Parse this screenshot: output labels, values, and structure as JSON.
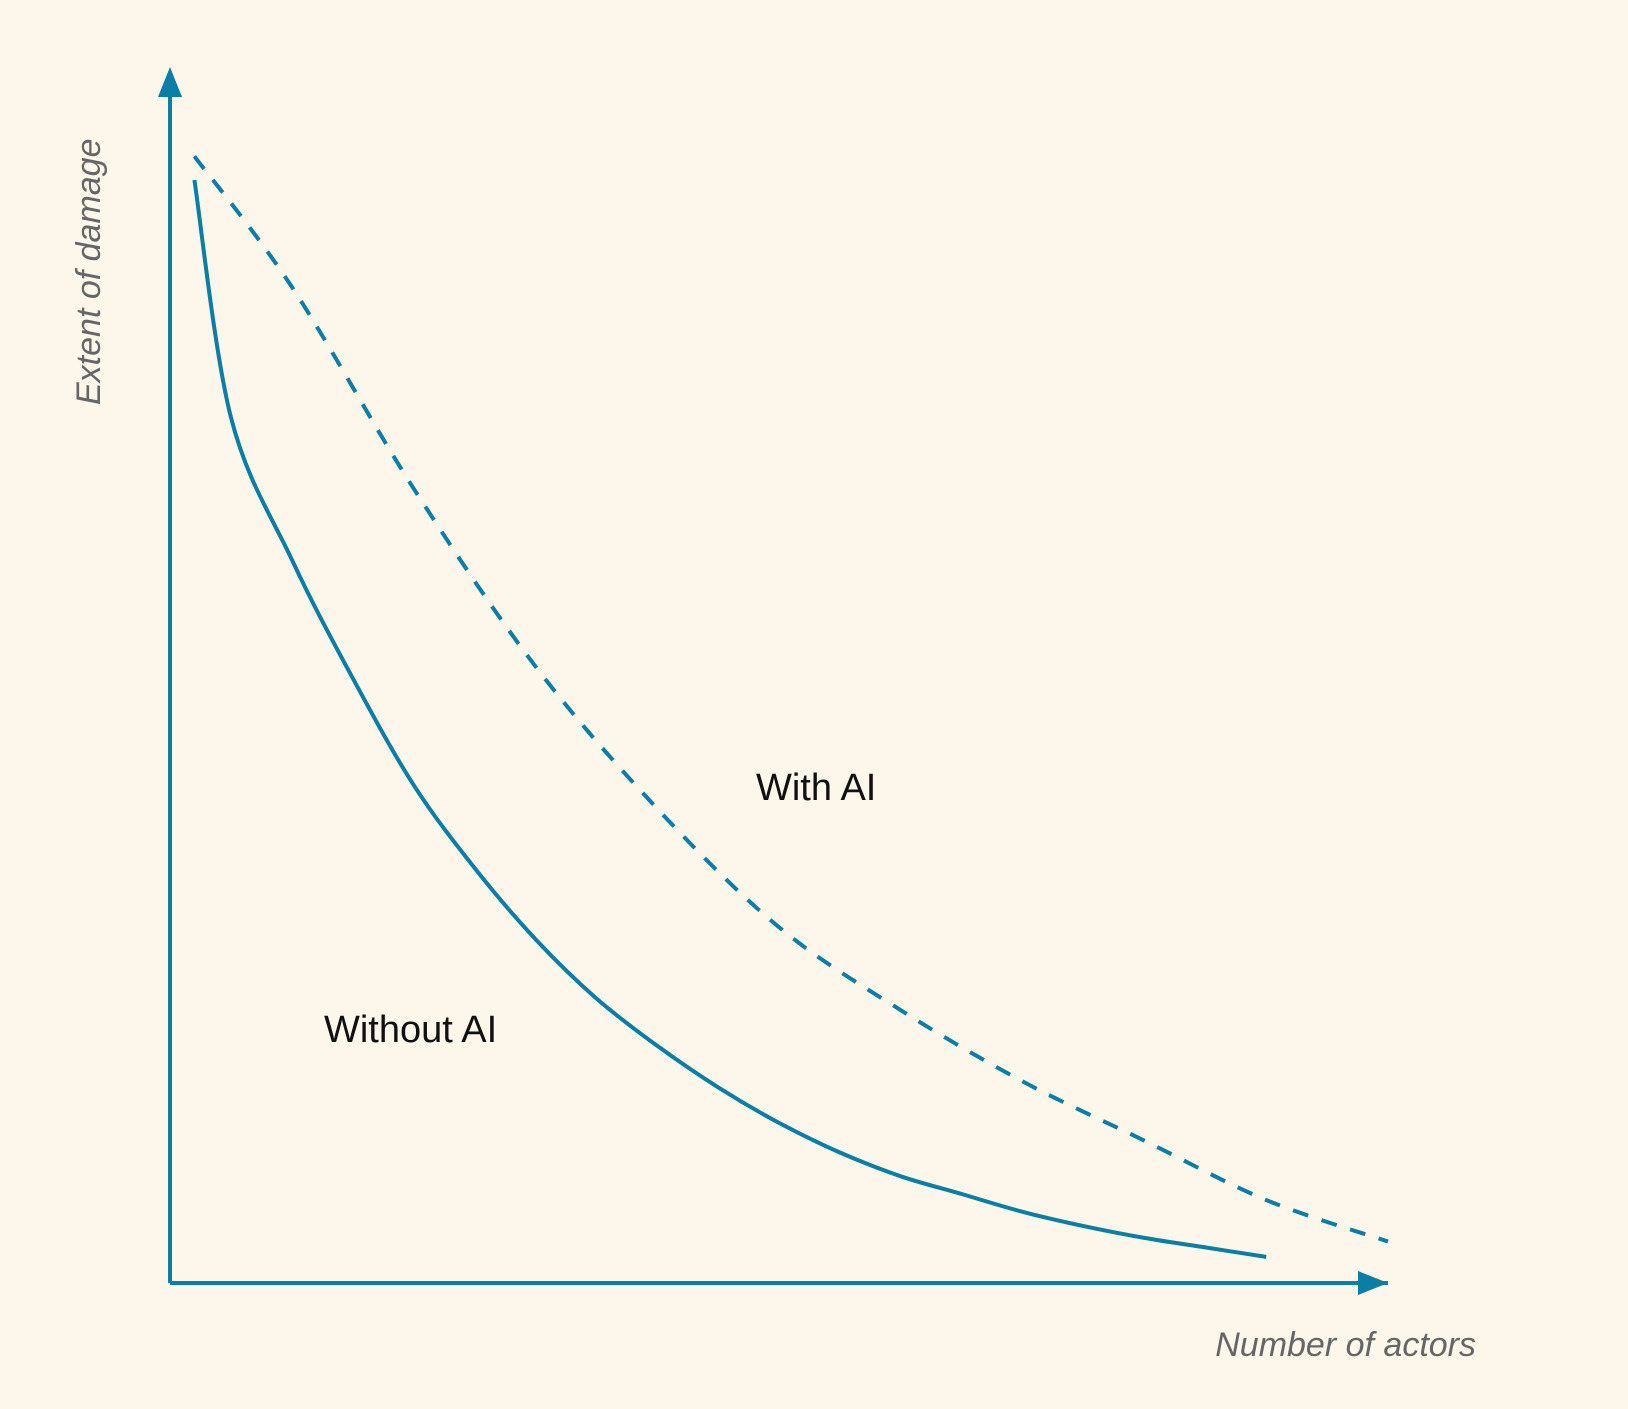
{
  "chart_data": {
    "type": "line",
    "xlabel": "Number of actors",
    "ylabel": "Extent of damage",
    "x_ticks_shown": false,
    "y_ticks_shown": false,
    "grid": false,
    "legend": "none (series labelled directly on the plot)",
    "xlim": [
      0,
      1
    ],
    "ylim": [
      0,
      1
    ],
    "series": [
      {
        "name": "Without AI",
        "line_style": "solid",
        "x": [
          0.02,
          0.05,
          0.1,
          0.15,
          0.2,
          0.25,
          0.3,
          0.35,
          0.4,
          0.45,
          0.5,
          0.55,
          0.6,
          0.65,
          0.7,
          0.75,
          0.8,
          0.85,
          0.9
        ],
        "values": [
          0.93,
          0.73,
          0.61,
          0.51,
          0.42,
          0.35,
          0.29,
          0.24,
          0.2,
          0.165,
          0.135,
          0.11,
          0.09,
          0.075,
          0.06,
          0.048,
          0.038,
          0.03,
          0.022
        ]
      },
      {
        "name": "With AI",
        "line_style": "dashed",
        "x": [
          0.02,
          0.1,
          0.2,
          0.3,
          0.4,
          0.5,
          0.6,
          0.7,
          0.8,
          0.9,
          1.0
        ],
        "values": [
          0.95,
          0.84,
          0.67,
          0.52,
          0.4,
          0.3,
          0.23,
          0.17,
          0.12,
          0.07,
          0.035
        ]
      }
    ],
    "colors": {
      "axis": "#0a7ea4",
      "series": "#0a7ea4",
      "background": "#fdf6eb",
      "axis_title_text": "#666666",
      "series_label_text": "#111111"
    }
  }
}
